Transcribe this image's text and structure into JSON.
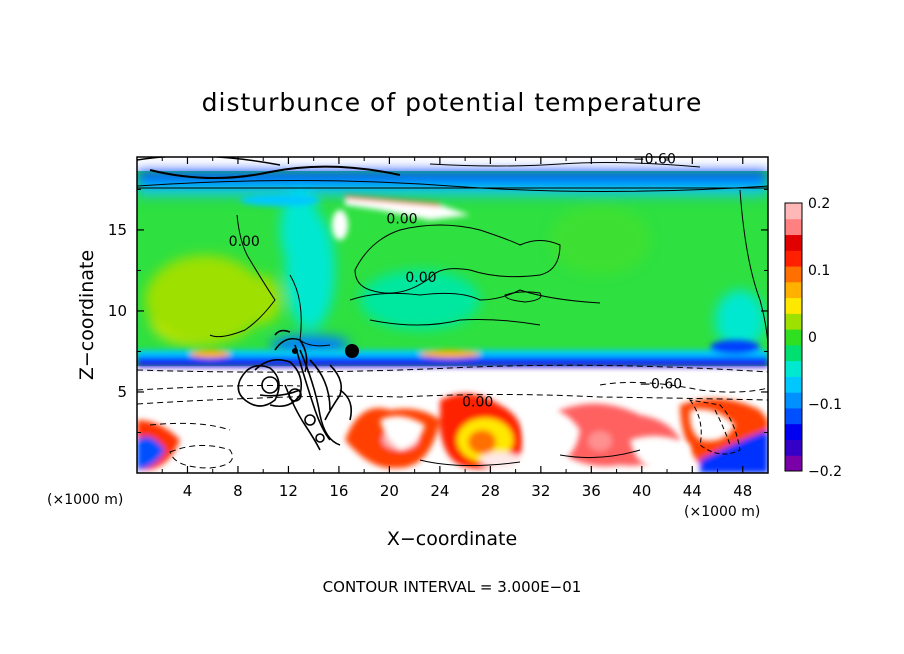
{
  "chart_data": {
    "type": "heatmap",
    "title": "disturbunce of potential temperature",
    "xlabel": "X−coordinate",
    "ylabel": "Z−coordinate",
    "x_unit_left": "(×1000 m)",
    "x_unit_right": "(×1000 m)",
    "x_ticks": [
      4,
      8,
      12,
      16,
      20,
      24,
      28,
      32,
      36,
      40,
      44,
      48
    ],
    "y_ticks": [
      5,
      10,
      15
    ],
    "xlim": [
      0,
      50
    ],
    "ylim": [
      0,
      19.5
    ],
    "colorbar": {
      "range": [
        -0.2,
        0.2
      ],
      "ticks": [
        {
          "value": 0.2,
          "label": "0.2"
        },
        {
          "value": 0.1,
          "label": "0.1"
        },
        {
          "value": 0,
          "label": "0"
        },
        {
          "value": -0.1,
          "label": "−0.1"
        },
        {
          "value": -0.2,
          "label": "−0.2"
        }
      ],
      "colors": [
        "#7a00a8",
        "#3400c8",
        "#0000f0",
        "#0050ff",
        "#0090ff",
        "#00c8ff",
        "#00e8d0",
        "#00e070",
        "#30e020",
        "#9ee000",
        "#ffe800",
        "#ffb000",
        "#ff7000",
        "#ff2000",
        "#e00000",
        "#ff8080",
        "#ffb8b8"
      ]
    },
    "contour_labels": [
      {
        "text": "0.00",
        "x": 21,
        "y": 15.4
      },
      {
        "text": "0.00",
        "x": 22.5,
        "y": 11.8
      },
      {
        "text": "0.00",
        "x": 8.5,
        "y": 14
      },
      {
        "text": "0.00",
        "x": 27,
        "y": 4.1
      },
      {
        "text": "−0.60",
        "x": 41.5,
        "y": 5.2
      },
      {
        "text": "−0.60",
        "x": 41,
        "y": 19.1
      }
    ],
    "contour_interval_text": "CONTOUR INTERVAL = 3.000E−01"
  }
}
